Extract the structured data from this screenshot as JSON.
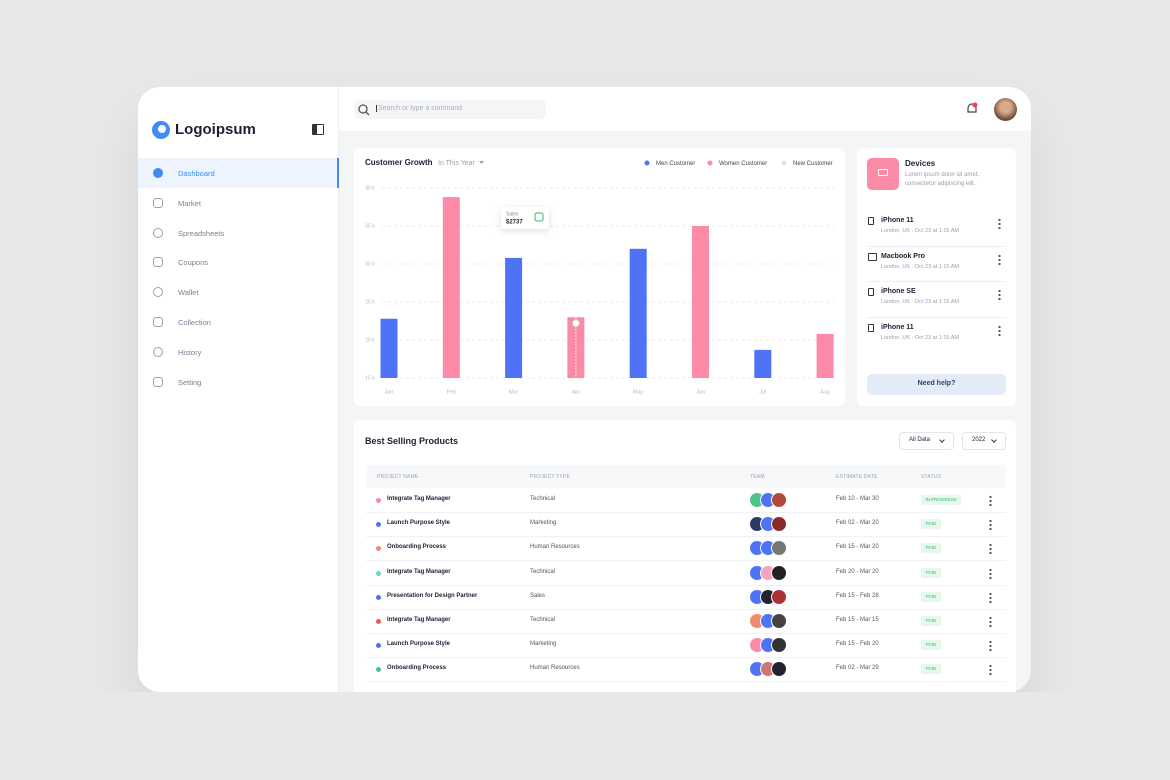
{
  "brand": "Logoipsum",
  "search": {
    "placeholder": "Search or type a command"
  },
  "sidebar": {
    "items": [
      "Dashboard",
      "Market",
      "Spreadsheets",
      "Coupons",
      "Wallet",
      "Collection",
      "History",
      "Setting"
    ],
    "active": 0
  },
  "chart": {
    "type": "bar",
    "title": "Customer Growth",
    "filter": "In This Year",
    "categories": [
      "Jan",
      "Feb",
      "Mar",
      "Apr",
      "May",
      "Jun",
      "Jul",
      "Aug"
    ],
    "series": [
      {
        "name": "Men Customer",
        "color": "#4f73f6",
        "values": [
          22800,
          null,
          30800,
          null,
          32000,
          null,
          18700,
          null
        ]
      },
      {
        "name": "Women Customer",
        "color": "#fb8aa7",
        "values": [
          null,
          38800,
          null,
          23000,
          null,
          35000,
          null,
          20800
        ]
      },
      {
        "name": "New Customer",
        "color": "#e3e5ea",
        "values": [
          null,
          null,
          null,
          null,
          null,
          null,
          null,
          null
        ]
      }
    ],
    "ylim": [
      15000,
      40000
    ],
    "yticks": [
      {
        "value": 15000,
        "label": "15 k"
      },
      {
        "value": 20000,
        "label": "20 k"
      },
      {
        "value": 25000,
        "label": "25 k"
      },
      {
        "value": 30000,
        "label": "30 k"
      },
      {
        "value": 35000,
        "label": "35 k"
      },
      {
        "value": 40000,
        "label": "40 k"
      }
    ],
    "grid": true,
    "tooltip": {
      "label": "Sales",
      "value": "$2737"
    }
  },
  "devices": {
    "title": "Devices",
    "description": "Lorem ipsum dolor sit amet, consectetur adipiscing elit.",
    "items": [
      {
        "name": "iPhone 11",
        "detail": "London, UK · Oct 23 at 1:15 AM"
      },
      {
        "name": "Macbook Pro",
        "detail": "London, UK · Oct 23 at 1:15 AM"
      },
      {
        "name": "iPhone SE",
        "detail": "London, UK · Oct 23 at 1:15 AM"
      },
      {
        "name": "iPhone 11",
        "detail": "London, UK · Oct 23 at 1:15 AM"
      }
    ],
    "help": "Need help?"
  },
  "table": {
    "title": "Best Selling Products",
    "filters": [
      "All Data",
      "2022"
    ],
    "headers": [
      "PROJECT NAME",
      "PROJECT TYPE",
      "TEAM",
      "ESTIMATE DATE",
      "STATUS"
    ],
    "rows": [
      [
        "Integrate Tag Manager",
        "Technical",
        "Feb 10 - Mar 30",
        "IN PROGRESS"
      ],
      [
        "Launch Purpose Style",
        "Marketing",
        "Feb 02 - Mar 20",
        "PAID"
      ],
      [
        "Onboarding Process",
        "Human Resources",
        "Feb 15 - Mar 20",
        "PAID"
      ],
      [
        "Integrate Tag Manager",
        "Technical",
        "Feb 20 - Mar 20",
        "PAID"
      ],
      [
        "Presentation for Design Partner",
        "Sales",
        "Feb 15 - Feb 28",
        "PAID"
      ],
      [
        "Integrate Tag Manager",
        "Technical",
        "Feb 15 - Mar 15",
        "PAID"
      ],
      [
        "Launch Purpose Style",
        "Marketing",
        "Feb 15 - Feb 20",
        "PAID"
      ],
      [
        "Onboarding Process",
        "Human Resources",
        "Feb 02 - Mar 29",
        "PAID"
      ]
    ]
  }
}
